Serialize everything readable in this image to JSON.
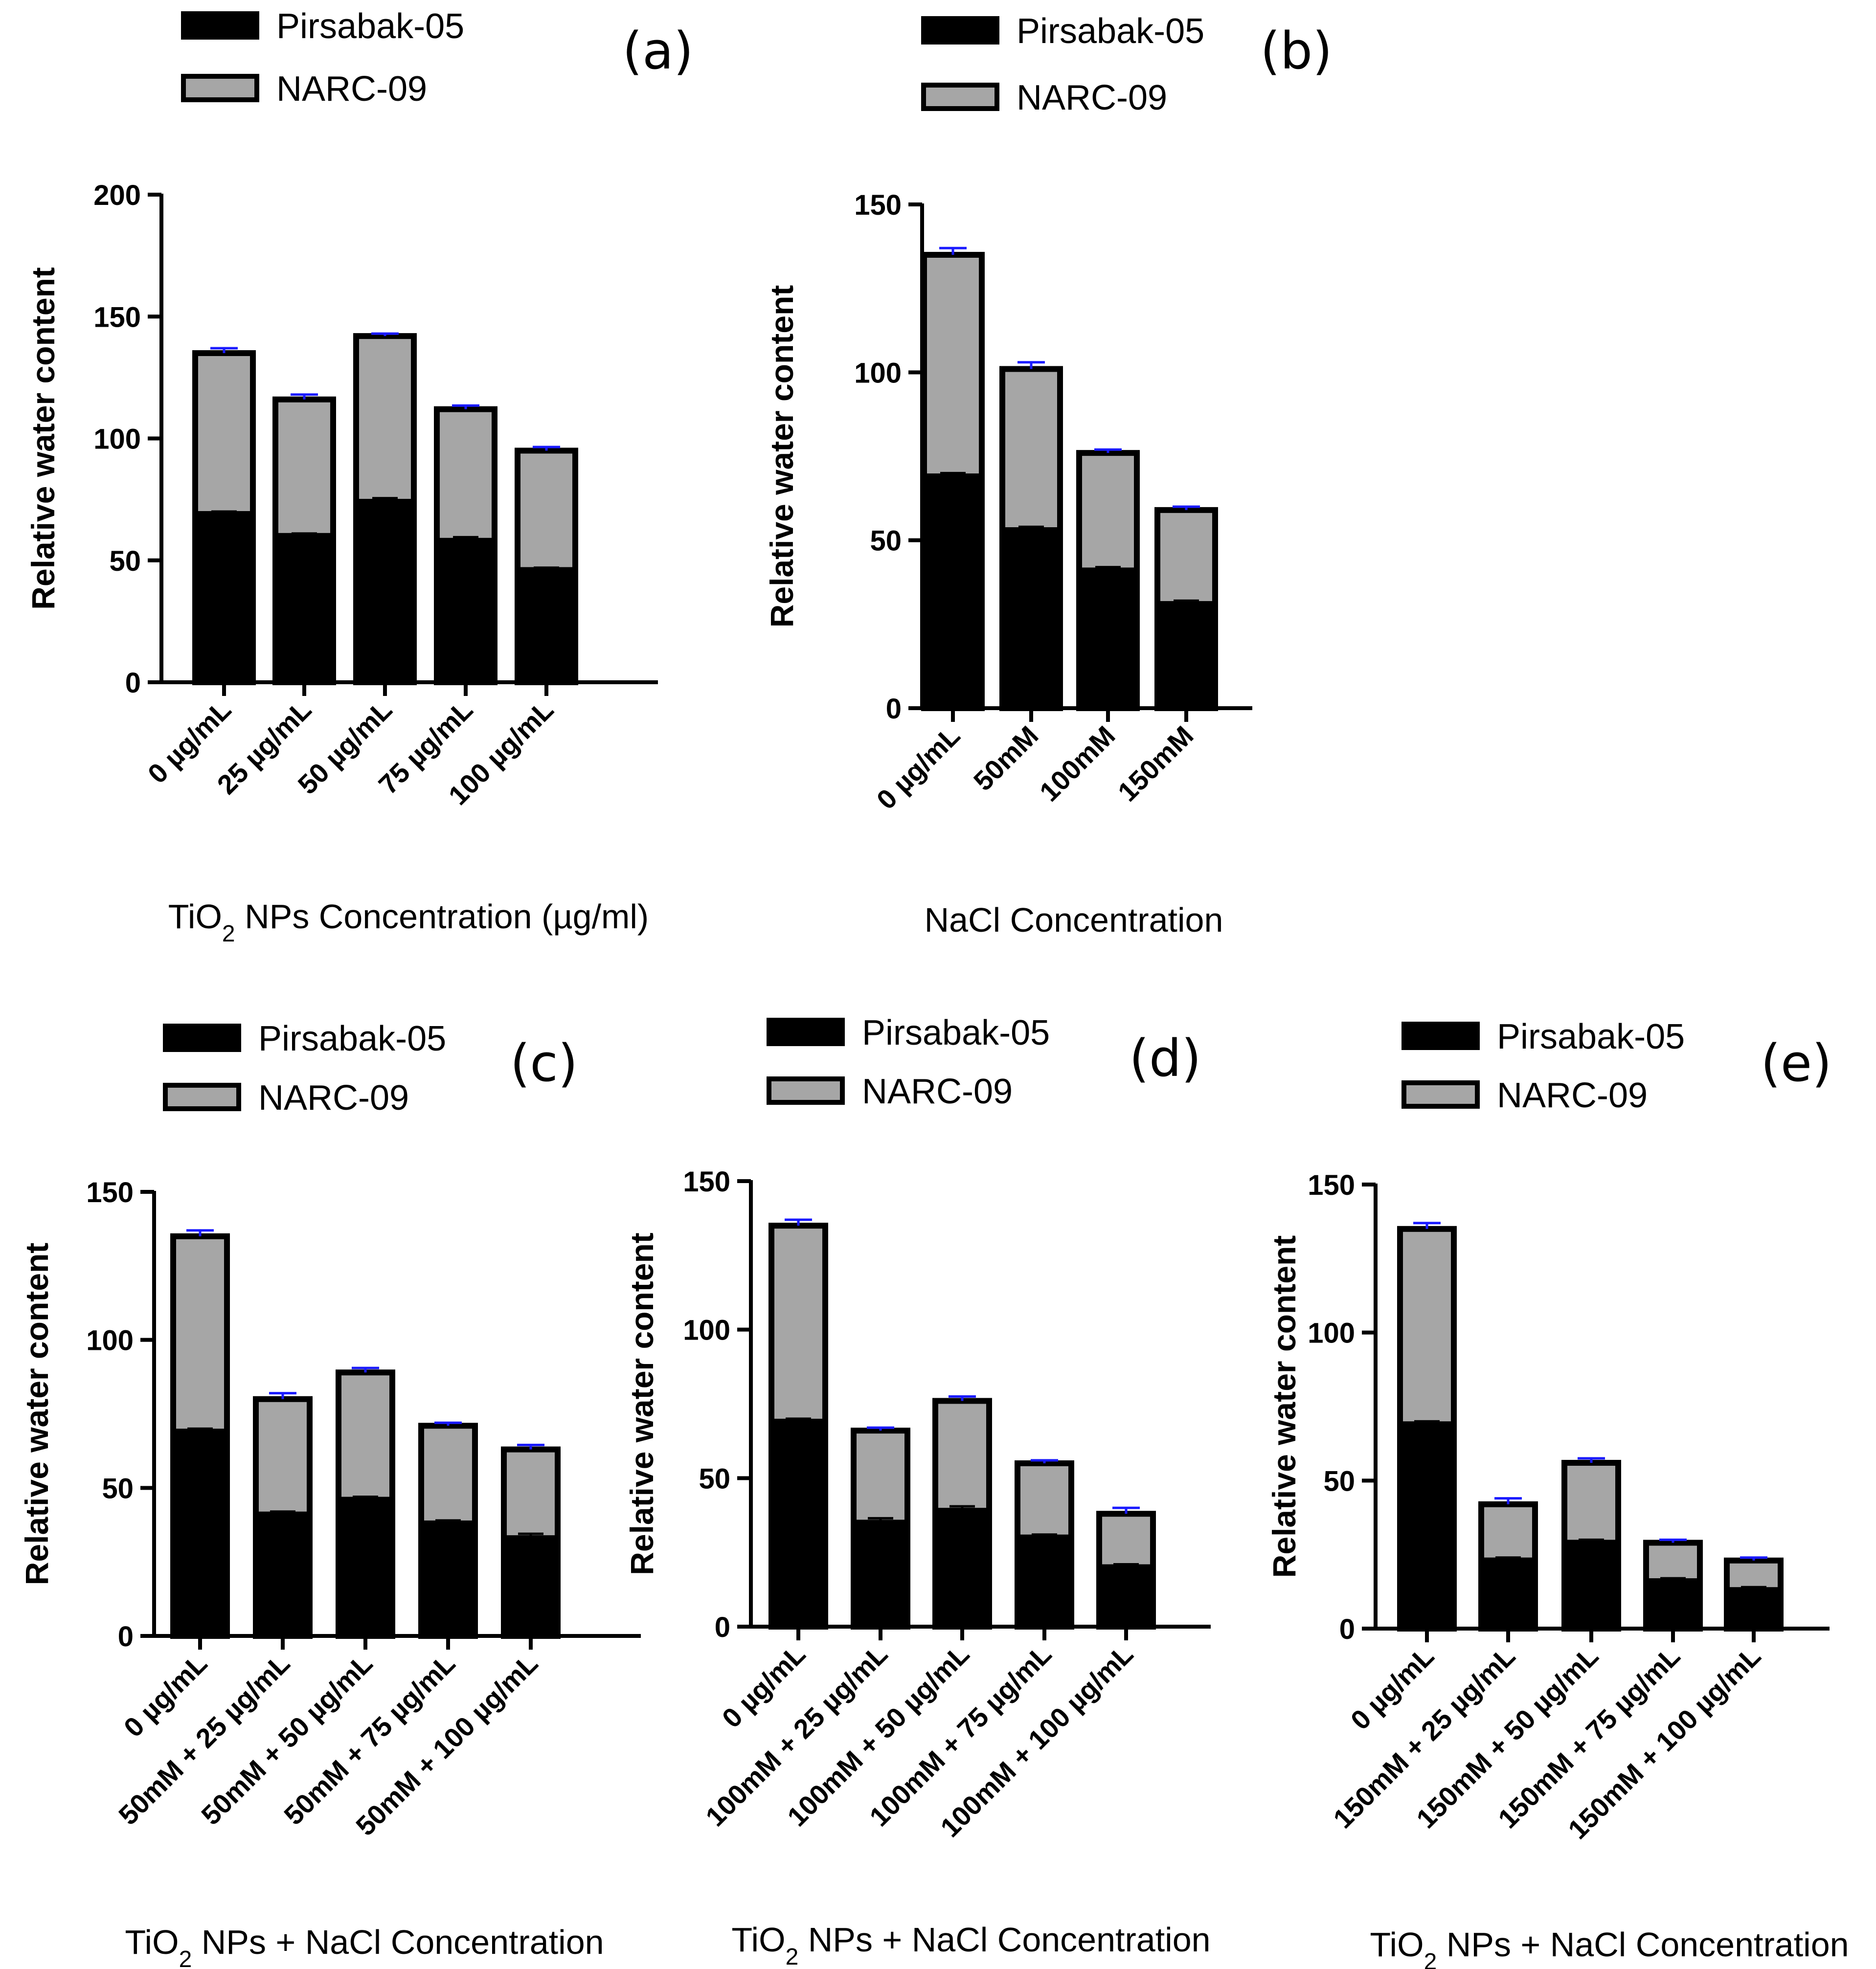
{
  "series_names": [
    "Pirsabak-05",
    "NARC-09"
  ],
  "colors": {
    "pirsabak": "#000000",
    "narc": "#a6a6a6",
    "error_bar_top": "#1a1aff",
    "error_bar_inner": "#000000"
  },
  "chart_data": [
    {
      "panel": "(a)",
      "type": "bar",
      "stacked": true,
      "title": "",
      "ylabel": "Relative water content",
      "xlabel_parts": [
        "TiO",
        "2",
        " NPs Concentration (µg/ml)"
      ],
      "ylim": [
        0,
        200
      ],
      "yticks": [
        0,
        50,
        100,
        150,
        200
      ],
      "categories": [
        "0 µg/mL",
        "25 µg/mL",
        "50 µg/mL",
        "75 µg/mL",
        "100 µg/mL"
      ],
      "series": [
        {
          "name": "Pirsabak-05",
          "values": [
            69,
            60,
            74,
            58,
            46
          ],
          "errors": [
            1,
            1,
            1.5,
            1.5,
            1
          ]
        },
        {
          "name": "NARC-09",
          "values": [
            66,
            56,
            68,
            54,
            49
          ],
          "errors": [
            2,
            2,
            1,
            1.5,
            1.5
          ]
        }
      ],
      "legend": "top-left"
    },
    {
      "panel": "(b)",
      "type": "bar",
      "stacked": true,
      "title": "",
      "ylabel": "Relative water content",
      "xlabel_parts": [
        "NaCl Concentration",
        "",
        ""
      ],
      "ylim": [
        0,
        150
      ],
      "yticks": [
        0,
        50,
        100,
        150
      ],
      "categories": [
        "0 µg/mL",
        "50mM",
        "100mM",
        "150mM"
      ],
      "series": [
        {
          "name": "Pirsabak-05",
          "values": [
            69,
            53,
            41,
            31
          ],
          "errors": [
            1,
            1,
            1,
            1
          ]
        },
        {
          "name": "NARC-09",
          "values": [
            66,
            48,
            35,
            28
          ],
          "errors": [
            2,
            2,
            1,
            1
          ]
        }
      ],
      "legend": "top-left"
    },
    {
      "panel": "(c)",
      "type": "bar",
      "stacked": true,
      "title": "",
      "ylabel": "Relative water content",
      "xlabel_parts": [
        "TiO",
        "2",
        "  NPs + NaCl Concentration"
      ],
      "ylim": [
        0,
        150
      ],
      "yticks": [
        0,
        50,
        100,
        150
      ],
      "categories": [
        "0 µg/mL",
        "50mM + 25 µg/mL",
        "50mM + 50 µg/mL",
        "50mM + 75 µg/mL",
        "50mM + 100 µg/mL"
      ],
      "series": [
        {
          "name": "Pirsabak-05",
          "values": [
            69,
            41,
            46,
            38,
            33
          ],
          "errors": [
            1,
            1,
            1,
            1,
            1.5
          ]
        },
        {
          "name": "NARC-09",
          "values": [
            66,
            39,
            43,
            33,
            30
          ],
          "errors": [
            2,
            2,
            1.5,
            1,
            1.5
          ]
        }
      ],
      "legend": "top-left"
    },
    {
      "panel": "(d)",
      "type": "bar",
      "stacked": true,
      "title": "",
      "ylabel": "Relative water content",
      "xlabel_parts": [
        "TiO",
        "2",
        "  NPs + NaCl Concentration"
      ],
      "ylim": [
        0,
        150
      ],
      "yticks": [
        0,
        50,
        100,
        150
      ],
      "categories": [
        "0 µg/mL",
        "100mM + 25 µg/mL",
        "100mM + 50 µg/mL",
        "100mM + 75 µg/mL",
        "100mM + 100 µg/mL"
      ],
      "series": [
        {
          "name": "Pirsabak-05",
          "values": [
            69,
            35,
            39,
            30,
            20
          ],
          "errors": [
            1,
            1.5,
            1.5,
            1,
            1
          ]
        },
        {
          "name": "NARC-09",
          "values": [
            66,
            31,
            37,
            25,
            18
          ],
          "errors": [
            2,
            1,
            1.5,
            1,
            2
          ]
        }
      ],
      "legend": "top-left"
    },
    {
      "panel": "(e)",
      "type": "bar",
      "stacked": true,
      "title": "",
      "ylabel": "Relative water content",
      "xlabel_parts": [
        "TiO",
        "2",
        "  NPs + NaCl Concentration"
      ],
      "ylim": [
        0,
        150
      ],
      "yticks": [
        0,
        50,
        100,
        150
      ],
      "categories": [
        "0 µg/mL",
        "150mM + 25 µg/mL",
        "150mM + 50 µg/mL",
        "150mM + 75 µg/mL",
        "150mM + 100 µg/mL"
      ],
      "series": [
        {
          "name": "Pirsabak-05",
          "values": [
            69,
            23,
            29,
            16,
            13
          ],
          "errors": [
            1,
            1,
            1,
            1,
            1
          ]
        },
        {
          "name": "NARC-09",
          "values": [
            66,
            19,
            27,
            13,
            10
          ],
          "errors": [
            2,
            2,
            1.5,
            1,
            1
          ]
        }
      ],
      "legend": "top-left"
    }
  ]
}
